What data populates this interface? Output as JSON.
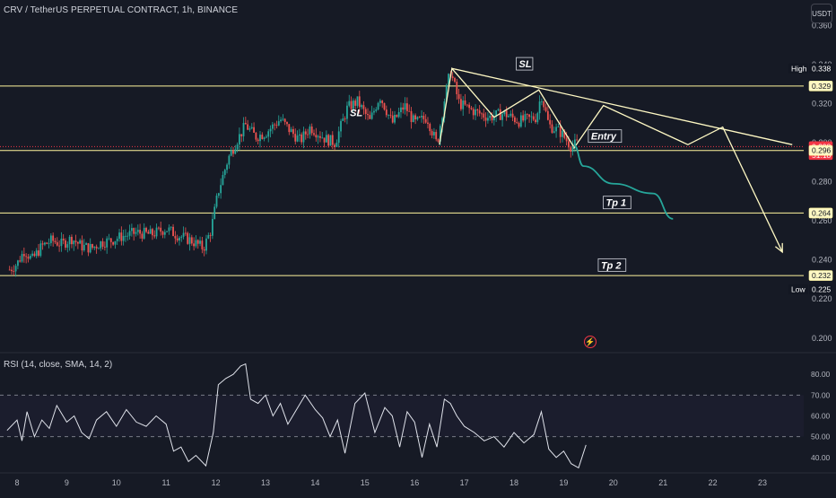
{
  "header": {
    "title": "CRV / TetherUS PERPETUAL CONTRACT, 1h, BINANCE",
    "currency": "USDT"
  },
  "rsi_header": "RSI (14, close, SMA, 14, 2)",
  "colors": {
    "background": "#161a25",
    "candle_up": "#26a69a",
    "candle_down": "#ef5350",
    "level_line": "#fff59d",
    "drawing": "#fff9c4",
    "forecast": "#26a69a",
    "rsi_line": "#e0e3eb",
    "current_price": "#f23645"
  },
  "chart_data": [
    {
      "type": "candlestick",
      "title": "CRV / TetherUS PERPETUAL CONTRACT, 1h, BINANCE",
      "ylim": [
        0.193,
        0.362
      ],
      "y_ticks": [
        "0.360",
        "0.340",
        "0.320",
        "0.300",
        "0.280",
        "0.260",
        "0.240",
        "0.220",
        "0.200"
      ],
      "x_ticks": [
        "8",
        "9",
        "10",
        "11",
        "12",
        "13",
        "14",
        "15",
        "16",
        "17",
        "18",
        "19",
        "20",
        "21",
        "22",
        "23"
      ],
      "x_tick_values": [
        8,
        9,
        10,
        11,
        12,
        13,
        14,
        15,
        16,
        17,
        18,
        19,
        20,
        21,
        22,
        23
      ],
      "close_path": [
        [
          7.85,
          0.235
        ],
        [
          8.0,
          0.238
        ],
        [
          8.15,
          0.245
        ],
        [
          8.3,
          0.24
        ],
        [
          8.5,
          0.247
        ],
        [
          8.7,
          0.25
        ],
        [
          8.9,
          0.248
        ],
        [
          9.1,
          0.251
        ],
        [
          9.3,
          0.247
        ],
        [
          9.5,
          0.246
        ],
        [
          9.7,
          0.249
        ],
        [
          9.9,
          0.25
        ],
        [
          10.1,
          0.252
        ],
        [
          10.4,
          0.254
        ],
        [
          10.7,
          0.253
        ],
        [
          11.0,
          0.256
        ],
        [
          11.2,
          0.253
        ],
        [
          11.5,
          0.25
        ],
        [
          11.75,
          0.246
        ],
        [
          11.9,
          0.255
        ],
        [
          12.05,
          0.275
        ],
        [
          12.25,
          0.292
        ],
        [
          12.4,
          0.3
        ],
        [
          12.6,
          0.309
        ],
        [
          12.8,
          0.303
        ],
        [
          13.0,
          0.305
        ],
        [
          13.3,
          0.312
        ],
        [
          13.5,
          0.306
        ],
        [
          13.7,
          0.301
        ],
        [
          13.9,
          0.308
        ],
        [
          14.2,
          0.302
        ],
        [
          14.4,
          0.3
        ],
        [
          14.65,
          0.318
        ],
        [
          14.85,
          0.321
        ],
        [
          15.1,
          0.311
        ],
        [
          15.3,
          0.324
        ],
        [
          15.55,
          0.31
        ],
        [
          15.8,
          0.319
        ],
        [
          16.0,
          0.31
        ],
        [
          16.25,
          0.313
        ],
        [
          16.45,
          0.299
        ],
        [
          16.6,
          0.322
        ],
        [
          16.72,
          0.337
        ],
        [
          16.9,
          0.32
        ],
        [
          17.2,
          0.316
        ],
        [
          17.5,
          0.313
        ],
        [
          17.8,
          0.315
        ],
        [
          18.1,
          0.311
        ],
        [
          18.45,
          0.313
        ],
        [
          18.55,
          0.325
        ],
        [
          18.7,
          0.309
        ],
        [
          18.95,
          0.305
        ],
        [
          19.15,
          0.298
        ],
        [
          19.3,
          0.3
        ]
      ],
      "price_labels": [
        {
          "text": "0.338",
          "value": 0.338,
          "prefix": "High",
          "style": "dark"
        },
        {
          "text": "0.329",
          "value": 0.329,
          "style": "level"
        },
        {
          "text": "0.298",
          "value": 0.298,
          "extra": "51:18",
          "style": "current"
        },
        {
          "text": "0.296",
          "value": 0.296,
          "style": "level"
        },
        {
          "text": "0.264",
          "value": 0.264,
          "style": "level"
        },
        {
          "text": "0.232",
          "value": 0.232,
          "style": "level"
        },
        {
          "text": "0.225",
          "value": 0.225,
          "prefix": "Low",
          "style": "dark"
        }
      ],
      "levels": [
        0.329,
        0.296,
        0.264,
        0.232
      ],
      "current_price": 0.298,
      "annotations": [
        {
          "text": "SL",
          "x": 18.1,
          "y": 0.339,
          "boxed": true
        },
        {
          "text": "SL",
          "x": 14.7,
          "y": 0.314,
          "boxed": false
        },
        {
          "text": "Entry",
          "x": 19.55,
          "y": 0.302,
          "boxed": true
        },
        {
          "text": "Tp 1",
          "x": 19.85,
          "y": 0.268,
          "boxed": true
        },
        {
          "text": "Tp 2",
          "x": 19.75,
          "y": 0.236,
          "boxed": true
        }
      ],
      "trendline": [
        [
          16.75,
          0.338
        ],
        [
          23.6,
          0.299
        ]
      ],
      "projection_path": [
        [
          19.2,
          0.297
        ],
        [
          19.8,
          0.319
        ],
        [
          21.5,
          0.299
        ],
        [
          22.2,
          0.308
        ],
        [
          23.4,
          0.244
        ]
      ],
      "forecast_curve": [
        [
          19.2,
          0.299
        ],
        [
          19.4,
          0.288
        ],
        [
          20.0,
          0.279
        ],
        [
          20.8,
          0.274
        ],
        [
          21.2,
          0.261
        ]
      ],
      "pattern_path": [
        [
          16.5,
          0.299
        ],
        [
          16.75,
          0.338
        ],
        [
          17.6,
          0.313
        ],
        [
          18.5,
          0.327
        ],
        [
          19.2,
          0.298
        ]
      ]
    },
    {
      "type": "line",
      "title": "RSI (14, close, SMA, 14, 2)",
      "ylim": [
        33,
        90
      ],
      "y_ticks": [
        "80.00",
        "70.00",
        "60.00",
        "50.00",
        "40.00"
      ],
      "y_tick_values": [
        80,
        70,
        60,
        50,
        40
      ],
      "bands": [
        70,
        50
      ],
      "series": [
        {
          "x": [
            7.8,
            8.0,
            8.1,
            8.2,
            8.35,
            8.5,
            8.65,
            8.8,
            9.0,
            9.15,
            9.3,
            9.45,
            9.6,
            9.8,
            10.0,
            10.2,
            10.4,
            10.6,
            10.8,
            11.0,
            11.15,
            11.3,
            11.45,
            11.6,
            11.8,
            11.95,
            12.05,
            12.2,
            12.35,
            12.5,
            12.6,
            12.7,
            12.85,
            13.0,
            13.15,
            13.3,
            13.45,
            13.6,
            13.8,
            14.0,
            14.15,
            14.3,
            14.45,
            14.6,
            14.8,
            15.0,
            15.2,
            15.4,
            15.55,
            15.7,
            15.85,
            16.0,
            16.15,
            16.3,
            16.45,
            16.6,
            16.72,
            16.85,
            17.0,
            17.2,
            17.4,
            17.6,
            17.8,
            18.0,
            18.2,
            18.4,
            18.55,
            18.7,
            18.85,
            19.0,
            19.15,
            19.3,
            19.45
          ],
          "values": [
            53,
            58,
            48,
            62,
            50,
            58,
            54,
            65,
            57,
            60,
            52,
            49,
            58,
            62,
            55,
            63,
            57,
            55,
            60,
            56,
            43,
            45,
            38,
            41,
            36,
            52,
            75,
            78,
            80,
            84,
            85,
            68,
            66,
            70,
            60,
            66,
            56,
            62,
            70,
            63,
            59,
            50,
            58,
            42,
            66,
            71,
            52,
            64,
            60,
            45,
            62,
            57,
            40,
            56,
            45,
            68,
            66,
            60,
            55,
            52,
            48,
            50,
            45,
            52,
            47,
            51,
            62,
            44,
            40,
            43,
            37,
            35,
            46
          ]
        }
      ]
    }
  ]
}
